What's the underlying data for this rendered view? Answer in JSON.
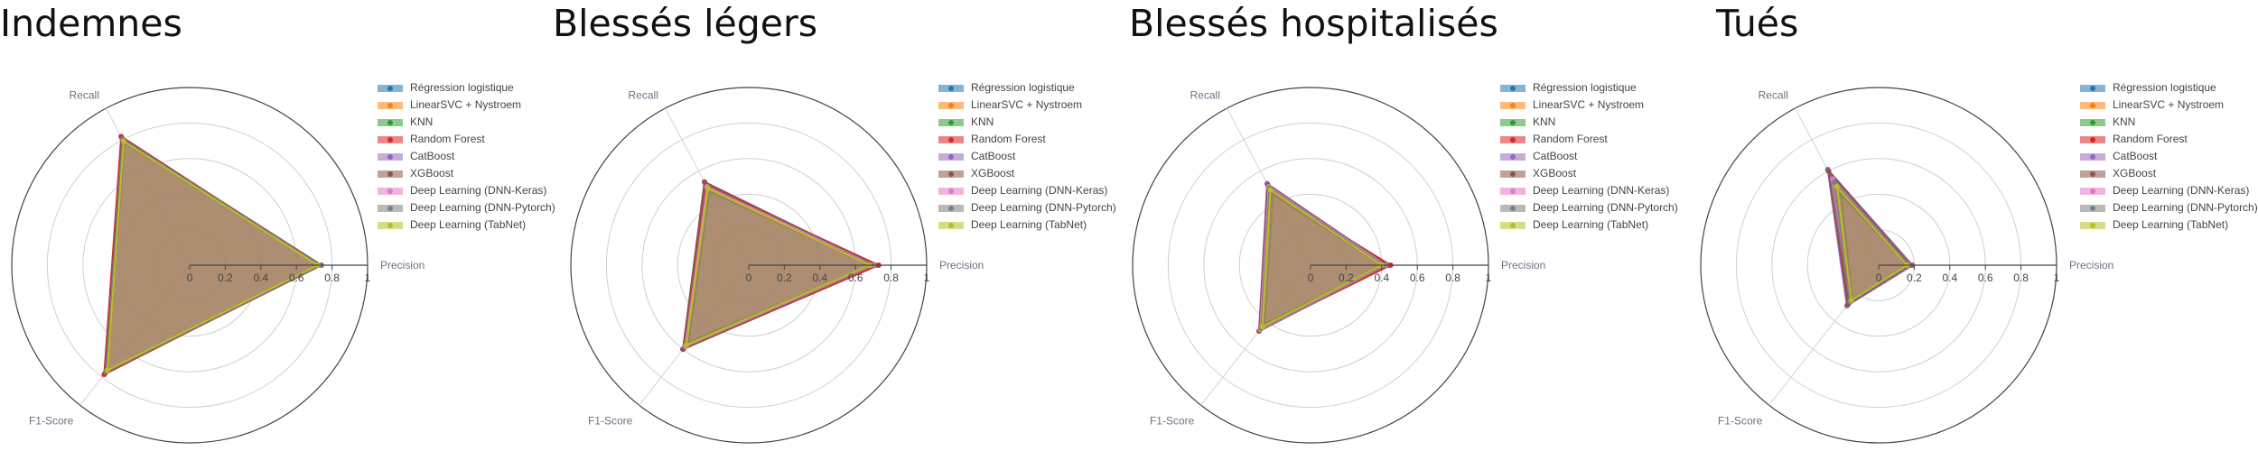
{
  "chart_data": [
    {
      "type": "radar",
      "title": "Indemnes",
      "axes": [
        "Precision",
        "Recall",
        "F1-Score"
      ],
      "radial_range": [
        0,
        1
      ],
      "radial_ticks": [
        "0",
        "0.2",
        "0.4",
        "0.6",
        "0.8",
        "1"
      ],
      "legend_position": "top-right",
      "series": [
        {
          "name": "Régression logistique",
          "values": [
            0.73,
            0.79,
            0.76
          ]
        },
        {
          "name": "LinearSVC + Nystroem",
          "values": [
            0.72,
            0.8,
            0.76
          ]
        },
        {
          "name": "KNN",
          "values": [
            0.72,
            0.78,
            0.75
          ]
        },
        {
          "name": "Random Forest",
          "values": [
            0.73,
            0.82,
            0.78
          ]
        },
        {
          "name": "CatBoost",
          "values": [
            0.74,
            0.81,
            0.77
          ]
        },
        {
          "name": "XGBoost",
          "values": [
            0.74,
            0.81,
            0.77
          ]
        },
        {
          "name": "Deep Learning (DNN-Keras)",
          "values": [
            0.73,
            0.8,
            0.76
          ]
        },
        {
          "name": "Deep Learning (DNN-Pytorch)",
          "values": [
            0.73,
            0.8,
            0.76
          ]
        },
        {
          "name": "Deep Learning (TabNet)",
          "values": [
            0.72,
            0.79,
            0.75
          ]
        }
      ]
    },
    {
      "type": "radar",
      "title": "Blessés légers",
      "axes": [
        "Precision",
        "Recall",
        "F1-Score"
      ],
      "radial_range": [
        0,
        1
      ],
      "radial_ticks": [
        "0",
        "0.2",
        "0.4",
        "0.6",
        "0.8",
        "1"
      ],
      "legend_position": "top-right",
      "series": [
        {
          "name": "Régression logistique",
          "values": [
            0.7,
            0.5,
            0.58
          ]
        },
        {
          "name": "LinearSVC + Nystroem",
          "values": [
            0.7,
            0.52,
            0.59
          ]
        },
        {
          "name": "KNN",
          "values": [
            0.68,
            0.47,
            0.55
          ]
        },
        {
          "name": "Random Forest",
          "values": [
            0.73,
            0.51,
            0.6
          ]
        },
        {
          "name": "CatBoost",
          "values": [
            0.71,
            0.53,
            0.6
          ]
        },
        {
          "name": "XGBoost",
          "values": [
            0.71,
            0.53,
            0.6
          ]
        },
        {
          "name": "Deep Learning (DNN-Keras)",
          "values": [
            0.7,
            0.5,
            0.58
          ]
        },
        {
          "name": "Deep Learning (DNN-Pytorch)",
          "values": [
            0.69,
            0.48,
            0.57
          ]
        },
        {
          "name": "Deep Learning (TabNet)",
          "values": [
            0.68,
            0.49,
            0.57
          ]
        }
      ]
    },
    {
      "type": "radar",
      "title": "Blessés hospitalisés",
      "axes": [
        "Precision",
        "Recall",
        "F1-Score"
      ],
      "radial_range": [
        0,
        1
      ],
      "radial_ticks": [
        "0",
        "0.2",
        "0.4",
        "0.6",
        "0.8",
        "1"
      ],
      "legend_position": "top-right",
      "series": [
        {
          "name": "Régression logistique",
          "values": [
            0.42,
            0.5,
            0.46
          ]
        },
        {
          "name": "LinearSVC + Nystroem",
          "values": [
            0.44,
            0.49,
            0.46
          ]
        },
        {
          "name": "KNN",
          "values": [
            0.4,
            0.45,
            0.42
          ]
        },
        {
          "name": "Random Forest",
          "values": [
            0.45,
            0.47,
            0.46
          ]
        },
        {
          "name": "CatBoost",
          "values": [
            0.43,
            0.52,
            0.47
          ]
        },
        {
          "name": "XGBoost",
          "values": [
            0.43,
            0.51,
            0.47
          ]
        },
        {
          "name": "Deep Learning (DNN-Keras)",
          "values": [
            0.42,
            0.5,
            0.46
          ]
        },
        {
          "name": "Deep Learning (DNN-Pytorch)",
          "values": [
            0.41,
            0.49,
            0.45
          ]
        },
        {
          "name": "Deep Learning (TabNet)",
          "values": [
            0.4,
            0.48,
            0.44
          ]
        }
      ]
    },
    {
      "type": "radar",
      "title": "Tués",
      "axes": [
        "Precision",
        "Recall",
        "F1-Score"
      ],
      "radial_range": [
        0,
        1
      ],
      "radial_ticks": [
        "0",
        "0.2",
        "0.4",
        "0.6",
        "0.8",
        "1"
      ],
      "legend_position": "top-right",
      "series": [
        {
          "name": "Régression logistique",
          "values": [
            0.17,
            0.56,
            0.27
          ]
        },
        {
          "name": "LinearSVC + Nystroem",
          "values": [
            0.18,
            0.6,
            0.28
          ]
        },
        {
          "name": "KNN",
          "values": [
            0.16,
            0.45,
            0.24
          ]
        },
        {
          "name": "Random Forest",
          "values": [
            0.19,
            0.52,
            0.28
          ]
        },
        {
          "name": "CatBoost",
          "values": [
            0.19,
            0.61,
            0.29
          ]
        },
        {
          "name": "XGBoost",
          "values": [
            0.18,
            0.6,
            0.28
          ]
        },
        {
          "name": "Deep Learning (DNN-Keras)",
          "values": [
            0.17,
            0.55,
            0.26
          ]
        },
        {
          "name": "Deep Learning (DNN-Pytorch)",
          "values": [
            0.17,
            0.53,
            0.26
          ]
        },
        {
          "name": "Deep Learning (TabNet)",
          "values": [
            0.16,
            0.5,
            0.25
          ]
        }
      ]
    }
  ],
  "series_colors": [
    "#1f77b4",
    "#ff7f0e",
    "#2ca02c",
    "#d62728",
    "#9467bd",
    "#8c564b",
    "#e377c2",
    "#7f7f7f",
    "#bcbd22"
  ]
}
